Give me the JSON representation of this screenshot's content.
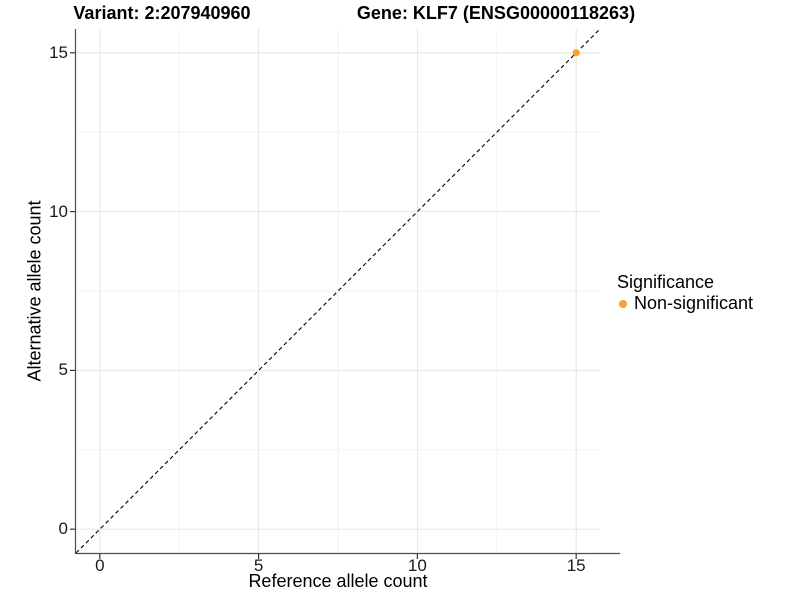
{
  "chart_data": {
    "type": "scatter",
    "titles": {
      "left": "Variant: 2:207940960",
      "right": "Gene: KLF7 (ENSG00000118263)"
    },
    "xlabel": "Reference allele count",
    "ylabel": "Alternative allele count",
    "xlim": [
      -0.75,
      15.75
    ],
    "ylim": [
      -0.75,
      15.75
    ],
    "x_ticks": [
      0,
      5,
      10,
      15
    ],
    "y_ticks": [
      0,
      5,
      10,
      15
    ],
    "x_minor_ticks": [
      2.5,
      7.5,
      12.5
    ],
    "y_minor_ticks": [
      2.5,
      7.5,
      12.5
    ],
    "grid": "major and minor gridlines on white panel",
    "series": [
      {
        "name": "Non-significant",
        "marker": "circle",
        "color": "#F9A22C",
        "points": [
          {
            "x": 15,
            "y": 15
          }
        ]
      }
    ],
    "reference_line": {
      "type": "identity y=x",
      "style": "dashed",
      "color": "#000000",
      "from": [
        -0.75,
        -0.75
      ],
      "to": [
        15.75,
        15.75
      ]
    },
    "legend": {
      "title": "Significance",
      "position": "right",
      "entries": [
        {
          "label": "Non-significant",
          "color": "#F9A22C"
        }
      ]
    },
    "colors": {
      "grid_major": "#E7E7E7",
      "grid_minor": "#F1F1F1",
      "axis_line": "#4D4D4D",
      "tick": "#333333",
      "text": "#000000",
      "point": "#F9A22C"
    }
  }
}
